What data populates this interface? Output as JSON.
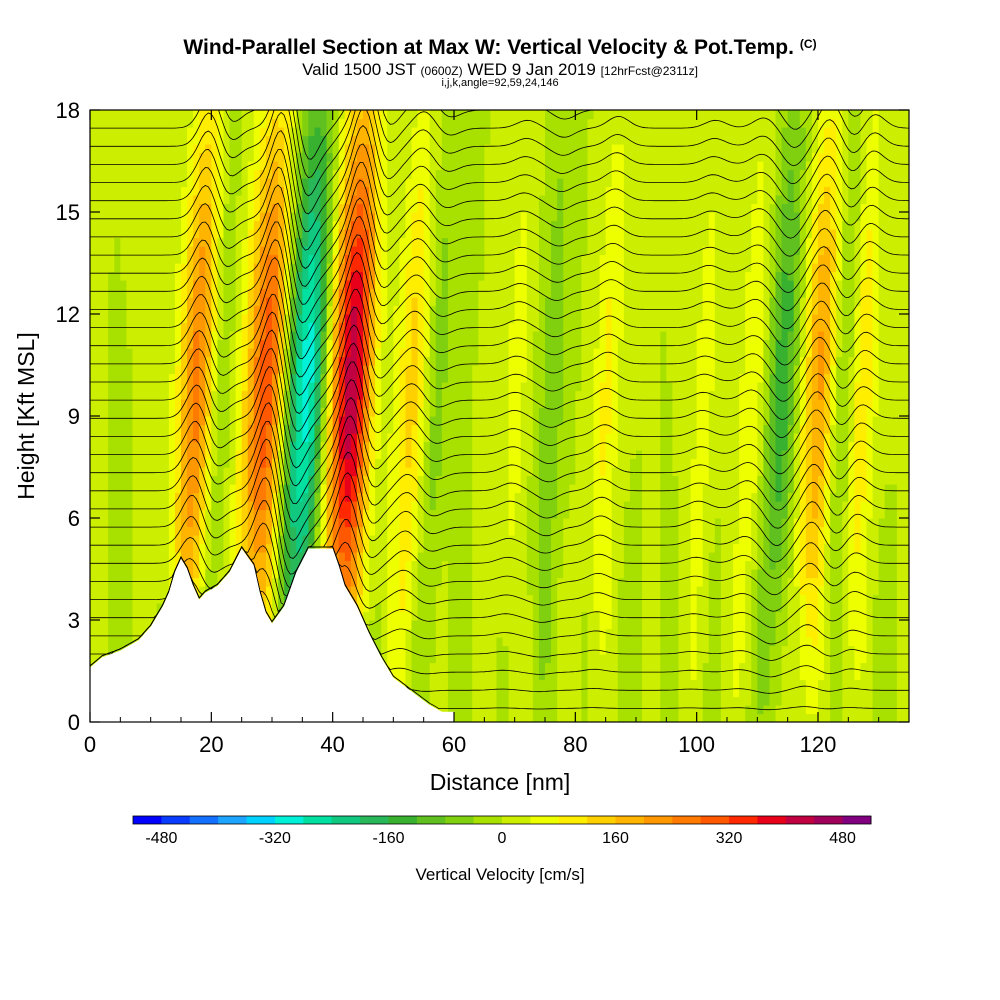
{
  "header": {
    "title": "Wind-Parallel Section at Max W: Vertical Velocity & Pot.Temp.",
    "copyright_mark": "(C)",
    "valid_prefix": "Valid 1500 JST",
    "valid_utc": "(0600Z)",
    "valid_date": "WED 9 Jan 2019",
    "forecast": "[12hrFcst@2311z]",
    "indices": "i,j,k,angle=92,59,24,146"
  },
  "chart_data": {
    "type": "heatmap",
    "xlabel": "Distance [nm]",
    "ylabel": "Height [Kft MSL]",
    "xlim": [
      0,
      135
    ],
    "ylim": [
      0,
      18
    ],
    "xticks": [
      0,
      20,
      40,
      60,
      80,
      100,
      120
    ],
    "yticks": [
      0,
      3,
      6,
      9,
      12,
      15,
      18
    ],
    "terrain_profile": [
      {
        "x": 0,
        "y": 1.6
      },
      {
        "x": 2,
        "y": 1.9
      },
      {
        "x": 5,
        "y": 2.1
      },
      {
        "x": 8,
        "y": 2.4
      },
      {
        "x": 10,
        "y": 2.8
      },
      {
        "x": 12,
        "y": 3.4
      },
      {
        "x": 13,
        "y": 3.8
      },
      {
        "x": 14,
        "y": 4.4
      },
      {
        "x": 15,
        "y": 4.8
      },
      {
        "x": 16,
        "y": 4.5
      },
      {
        "x": 17,
        "y": 4.0
      },
      {
        "x": 18,
        "y": 3.6
      },
      {
        "x": 19,
        "y": 3.8
      },
      {
        "x": 21,
        "y": 4.0
      },
      {
        "x": 23,
        "y": 4.4
      },
      {
        "x": 25,
        "y": 5.1
      },
      {
        "x": 27,
        "y": 4.6
      },
      {
        "x": 28,
        "y": 3.8
      },
      {
        "x": 29,
        "y": 3.2
      },
      {
        "x": 30,
        "y": 2.9
      },
      {
        "x": 32,
        "y": 3.4
      },
      {
        "x": 34,
        "y": 4.4
      },
      {
        "x": 36,
        "y": 5.1
      },
      {
        "x": 40,
        "y": 5.1
      },
      {
        "x": 41,
        "y": 4.6
      },
      {
        "x": 42,
        "y": 4.0
      },
      {
        "x": 44,
        "y": 3.4
      },
      {
        "x": 46,
        "y": 2.6
      },
      {
        "x": 48,
        "y": 1.9
      },
      {
        "x": 50,
        "y": 1.3
      },
      {
        "x": 53,
        "y": 0.9
      },
      {
        "x": 56,
        "y": 0.5
      },
      {
        "x": 58,
        "y": 0.3
      },
      {
        "x": 60,
        "y": 0.3
      }
    ],
    "vertical_velocity_features": [
      {
        "x": 18,
        "w": 300
      },
      {
        "x": 20.5,
        "w": -150
      },
      {
        "x": 30,
        "w": 440
      },
      {
        "x": 33.5,
        "w": -400
      },
      {
        "x": 37,
        "w": -120
      },
      {
        "x": 43.5,
        "w": 470
      },
      {
        "x": 46.5,
        "w": -170
      },
      {
        "x": 53,
        "w": 130
      },
      {
        "x": 57,
        "w": -60
      },
      {
        "x": 70,
        "w": 60
      },
      {
        "x": 76,
        "w": -70
      },
      {
        "x": 85,
        "w": 90
      },
      {
        "x": 101,
        "w": 60
      },
      {
        "x": 109,
        "w": 80
      },
      {
        "x": 114,
        "w": -150
      },
      {
        "x": 120,
        "w": 210
      },
      {
        "x": 124,
        "w": -90
      },
      {
        "x": 127,
        "w": 120
      }
    ],
    "isentrope_count": 34,
    "colorbar": {
      "label": "Vertical Velocity [cm/s]",
      "ticks": [
        "-480",
        "-320",
        "-160",
        "0",
        "160",
        "320",
        "480"
      ],
      "min": -520,
      "max": 520,
      "step": 40,
      "colors": [
        "#0000ff",
        "#0a3cff",
        "#1470ff",
        "#1ca4ff",
        "#00d2ff",
        "#00f0d8",
        "#00e0a0",
        "#10c880",
        "#28b85a",
        "#38b030",
        "#60c020",
        "#80d010",
        "#a8e000",
        "#ccee00",
        "#eeff00",
        "#ffee00",
        "#ffd000",
        "#ffb400",
        "#ff9800",
        "#ff7a00",
        "#ff5800",
        "#ff2800",
        "#e8001a",
        "#c00040",
        "#a0005a",
        "#800080"
      ]
    }
  }
}
